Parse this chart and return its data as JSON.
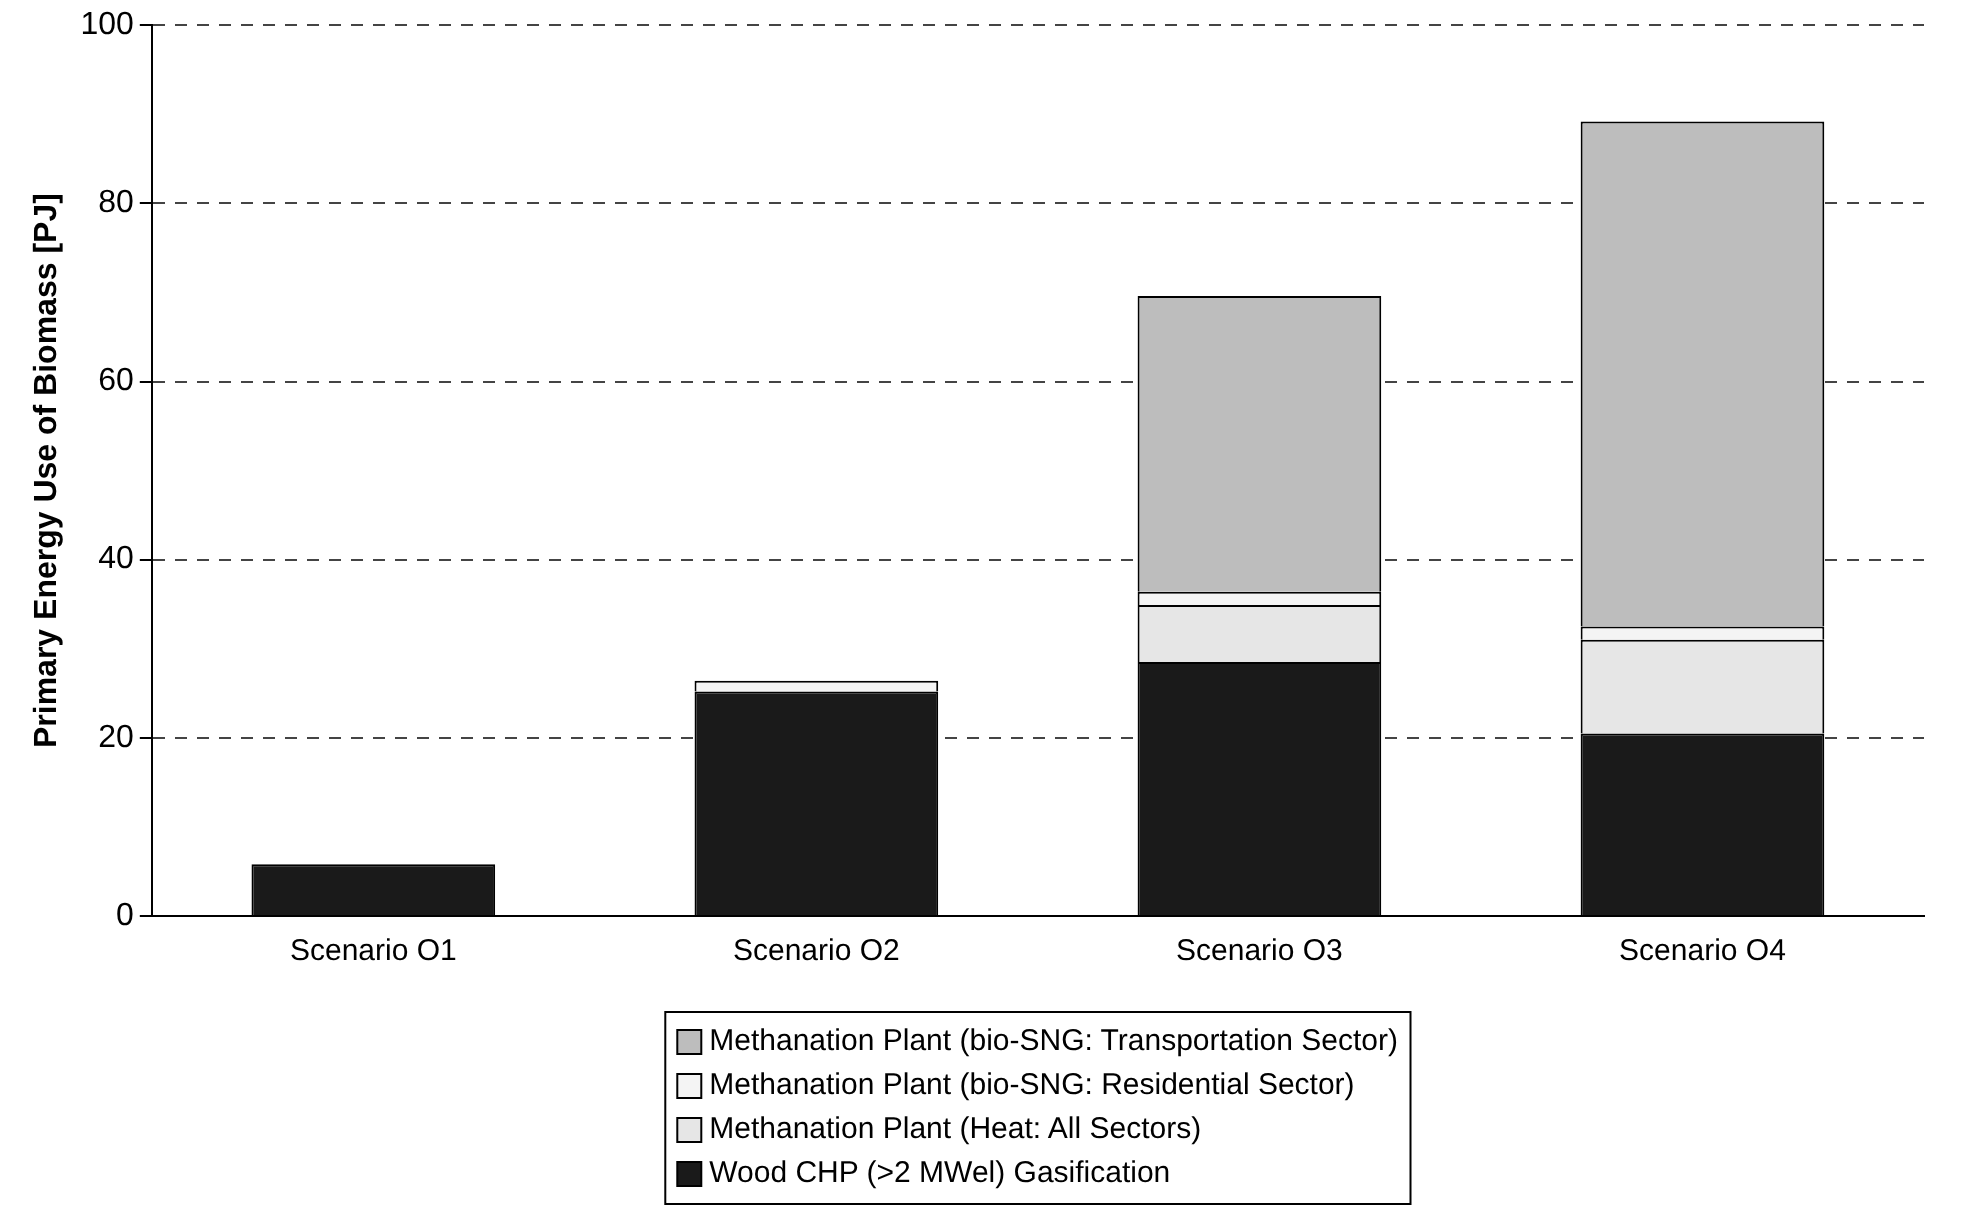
{
  "chart_data": {
    "type": "bar",
    "ylabel": "Primary Energy Use of Biomass [PJ]",
    "categories": [
      "Scenario O1",
      "Scenario O2",
      "Scenario O3",
      "Scenario O4"
    ],
    "stacked": true,
    "series": [
      {
        "name": "Wood CHP (>2 MWel) Gasification",
        "color": "#1a1a1a",
        "values": [
          5.8,
          25.2,
          28.5,
          20.5
        ]
      },
      {
        "name": "Methanation Plant (Heat: All Sectors)",
        "color": "#e6e6e6",
        "values": [
          0,
          0,
          6.4,
          10.5
        ]
      },
      {
        "name": "Methanation Plant (bio-SNG: Residential Sector)",
        "color": "#f4f4f4",
        "values": [
          0,
          1.2,
          1.5,
          1.5
        ]
      },
      {
        "name": "Methanation Plant (bio-SNG: Transportation Sector)",
        "color": "#bdbdbd",
        "values": [
          0,
          0,
          33.2,
          56.7
        ]
      }
    ],
    "ylim": [
      0,
      100
    ],
    "yticks": [
      0,
      20,
      40,
      60,
      80,
      100
    ],
    "grid": "y",
    "legend": "bottom"
  }
}
